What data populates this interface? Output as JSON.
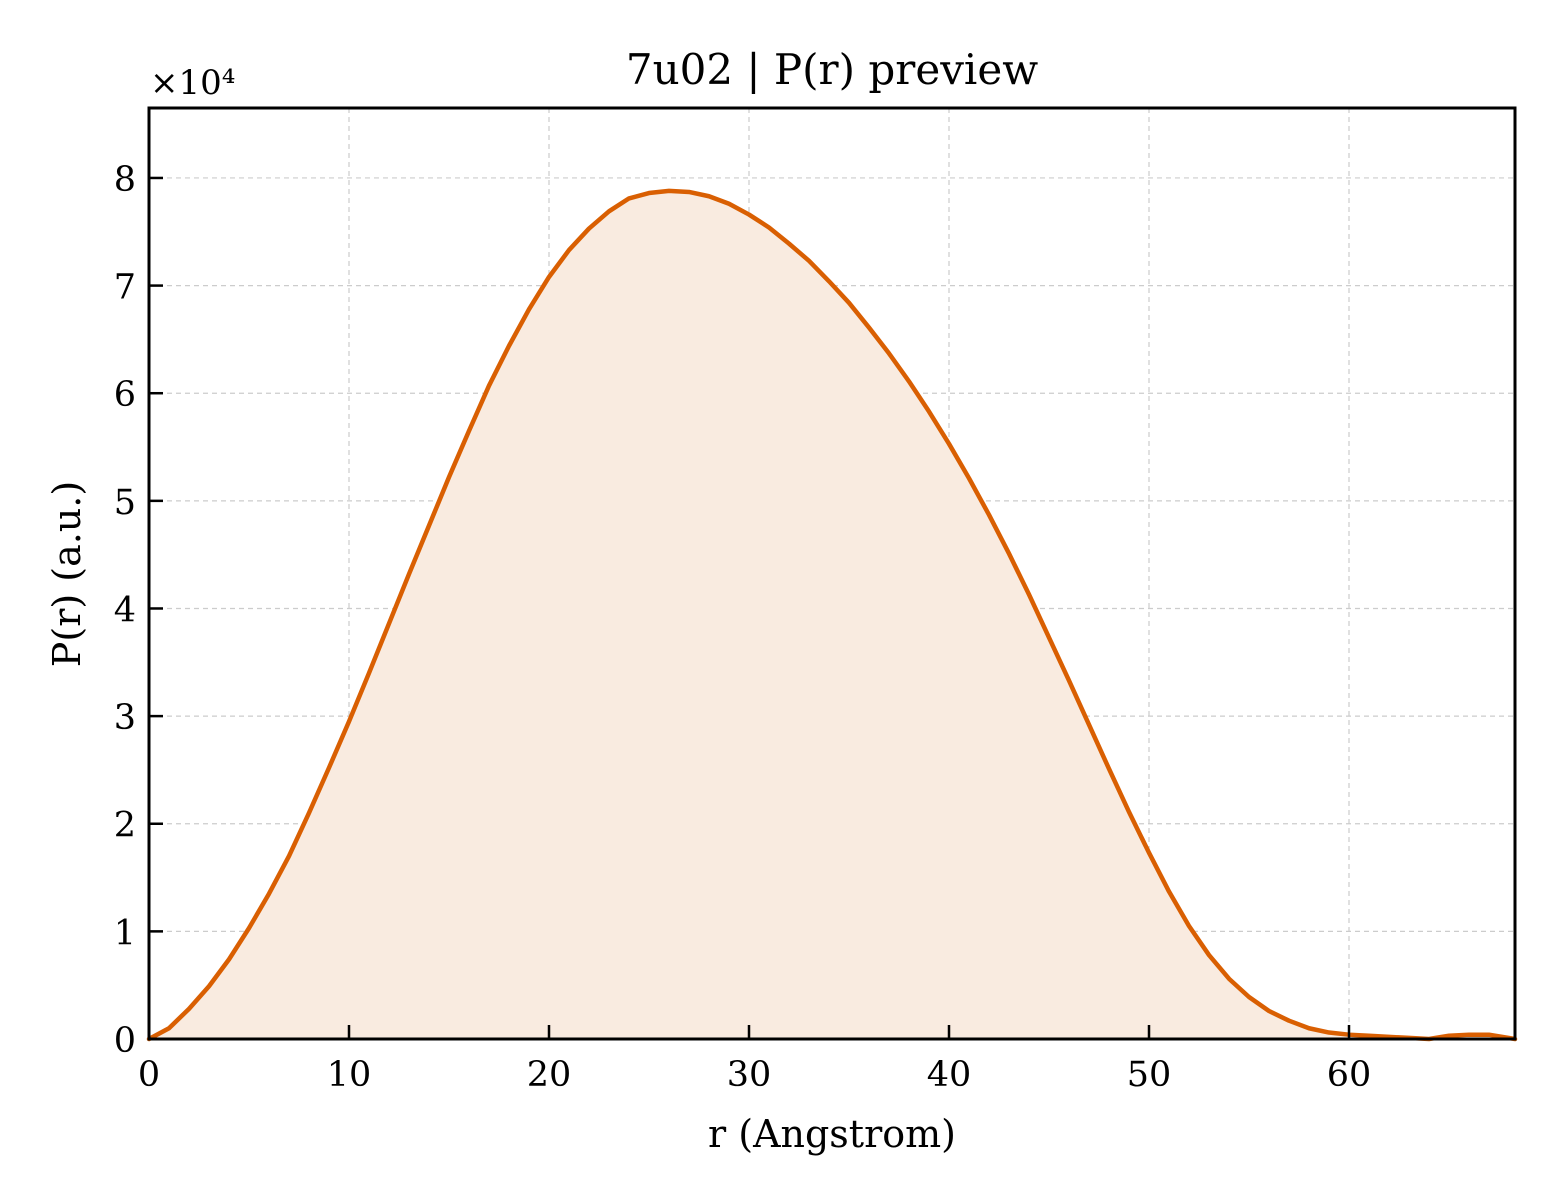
{
  "chart_data": {
    "type": "area",
    "title": "7u02 | P(r) preview",
    "xlabel": "r (Angstrom)",
    "ylabel": "P(r) (a.u.)",
    "y_multiplier_label": "×10⁴",
    "xlim": [
      0,
      68.3
    ],
    "ylim": [
      0,
      8.65
    ],
    "x_ticks": [
      0,
      10,
      20,
      30,
      40,
      50,
      60
    ],
    "y_ticks": [
      0,
      1,
      2,
      3,
      4,
      5,
      6,
      7,
      8
    ],
    "grid": true,
    "line_color": "#d95f02",
    "fill_color": "#f9ebe0",
    "series": [
      {
        "x": [
          0,
          1,
          2,
          3,
          4,
          5,
          6,
          7,
          8,
          9,
          10,
          11,
          12,
          13,
          14,
          15,
          16,
          17,
          18,
          19,
          20,
          21,
          22,
          23,
          24,
          25,
          26,
          27,
          28,
          29,
          30,
          31,
          32,
          33,
          34,
          35,
          36,
          37,
          38,
          39,
          40,
          41,
          42,
          43,
          44,
          45,
          46,
          47,
          48,
          49,
          50,
          51,
          52,
          53,
          54,
          55,
          56,
          57,
          58,
          59,
          60,
          61,
          62,
          63,
          64,
          65,
          66,
          67,
          68.3
        ],
        "values": [
          0.0,
          0.1,
          0.28,
          0.49,
          0.74,
          1.03,
          1.35,
          1.7,
          2.1,
          2.52,
          2.95,
          3.4,
          3.86,
          4.32,
          4.77,
          5.22,
          5.65,
          6.07,
          6.44,
          6.78,
          7.08,
          7.33,
          7.53,
          7.69,
          7.81,
          7.86,
          7.88,
          7.87,
          7.83,
          7.76,
          7.66,
          7.54,
          7.39,
          7.23,
          7.04,
          6.84,
          6.61,
          6.37,
          6.11,
          5.83,
          5.53,
          5.21,
          4.87,
          4.51,
          4.13,
          3.73,
          3.33,
          2.92,
          2.51,
          2.11,
          1.73,
          1.37,
          1.05,
          0.78,
          0.56,
          0.39,
          0.26,
          0.17,
          0.1,
          0.06,
          0.04,
          0.03,
          0.02,
          0.01,
          0.0,
          0.03,
          0.04,
          0.04,
          0.0
        ]
      }
    ]
  }
}
